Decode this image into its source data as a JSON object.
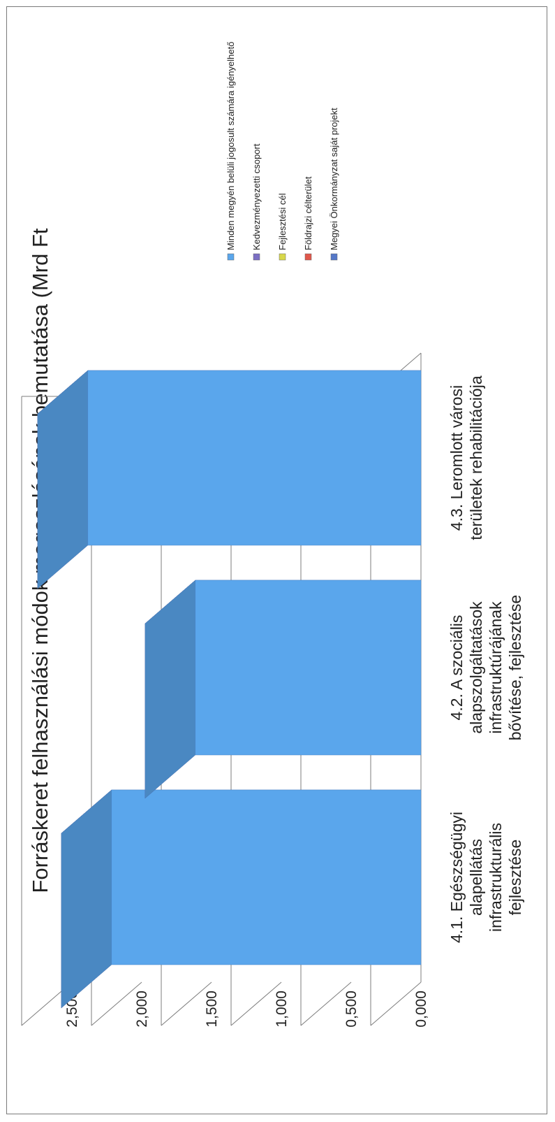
{
  "chart_data": {
    "type": "bar",
    "title": "Forráskeret felhasználási módok megoszlásának bemutatása (Mrd Ft",
    "orientation": "rotated-90-ccw",
    "three_d": true,
    "categories": [
      [
        "4.1. Egészségügyi",
        "alapellátás",
        "infrastrukturális",
        "fejlesztése"
      ],
      [
        "4.2. A szociális",
        "alapszolgáltatások",
        "infrastruktúrájának",
        "bővítése, fejlesztése"
      ],
      [
        "4.3. Leromlott városi",
        "területek rehabilitációja"
      ]
    ],
    "series": [
      {
        "name": "Minden megyén belüli jogosult számára igényelhető",
        "values": [
          2.216,
          1.616,
          2.386
        ],
        "color": "#5aa6ec"
      },
      {
        "name": "Kedvezményezetti csoport",
        "values": [
          0,
          0,
          0
        ],
        "color": "#7b6fc4"
      },
      {
        "name": "Fejlesztési cél",
        "values": [
          0,
          0,
          0
        ],
        "color": "#d8d84a"
      },
      {
        "name": "Földrajzi célterület",
        "values": [
          0,
          0,
          0
        ],
        "color": "#e0574a"
      },
      {
        "name": "Megyei Önkormányzat saját projekt",
        "values": [
          0,
          0,
          0
        ],
        "color": "#5578c8"
      }
    ],
    "ylim": [
      0,
      2.5
    ],
    "yticks": [
      "0,000",
      "0,500",
      "1,000",
      "1,500",
      "2,000",
      "2,500"
    ],
    "grid": true,
    "legend_position": "right"
  }
}
